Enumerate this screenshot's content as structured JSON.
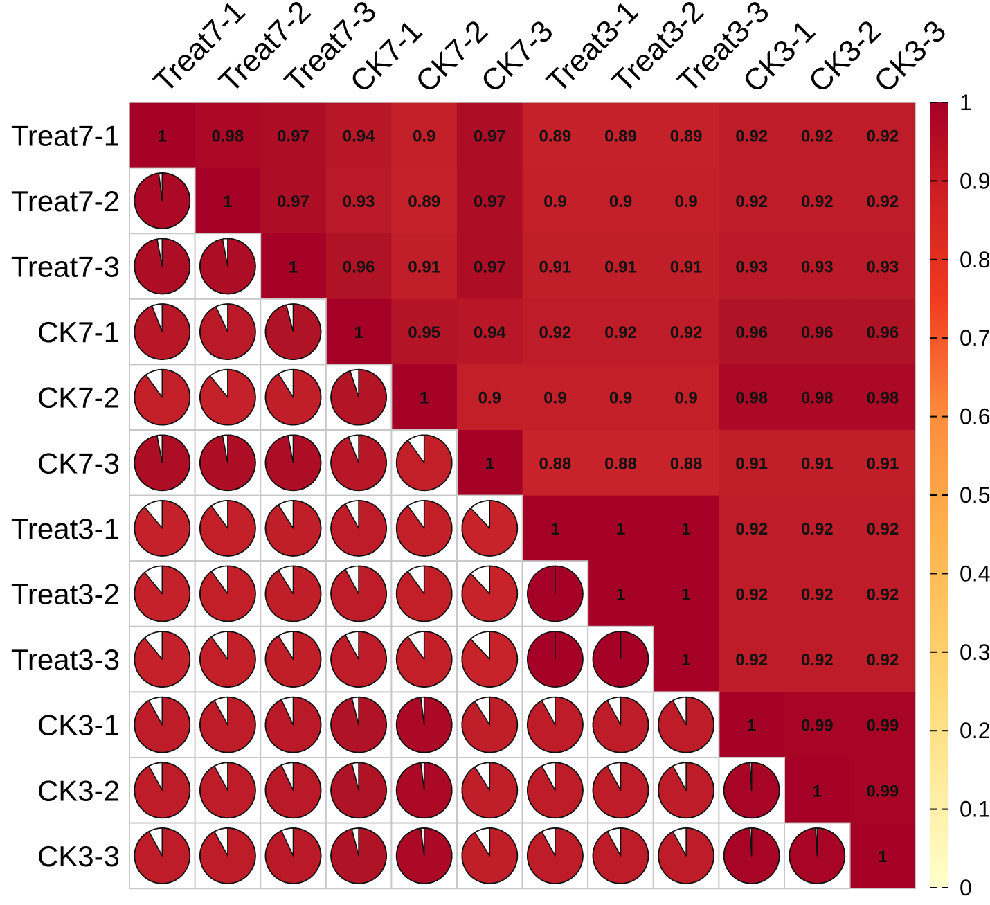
{
  "chart_data": {
    "type": "heatmap",
    "title": "",
    "variables": [
      "Treat7-1",
      "Treat7-2",
      "Treat7-3",
      "CK7-1",
      "CK7-2",
      "CK7-3",
      "Treat3-1",
      "Treat3-2",
      "Treat3-3",
      "CK3-1",
      "CK3-2",
      "CK3-3"
    ],
    "matrix": [
      [
        1,
        0.98,
        0.97,
        0.94,
        0.9,
        0.97,
        0.89,
        0.89,
        0.89,
        0.92,
        0.92,
        0.92
      ],
      [
        0.98,
        1,
        0.97,
        0.93,
        0.89,
        0.97,
        0.9,
        0.9,
        0.9,
        0.92,
        0.92,
        0.92
      ],
      [
        0.97,
        0.97,
        1,
        0.96,
        0.91,
        0.97,
        0.91,
        0.91,
        0.91,
        0.93,
        0.93,
        0.93
      ],
      [
        0.94,
        0.93,
        0.96,
        1,
        0.95,
        0.94,
        0.92,
        0.92,
        0.92,
        0.96,
        0.96,
        0.96
      ],
      [
        0.9,
        0.89,
        0.91,
        0.95,
        1,
        0.9,
        0.9,
        0.9,
        0.9,
        0.98,
        0.98,
        0.98
      ],
      [
        0.97,
        0.97,
        0.97,
        0.94,
        0.9,
        1,
        0.88,
        0.88,
        0.88,
        0.91,
        0.91,
        0.91
      ],
      [
        0.89,
        0.9,
        0.91,
        0.92,
        0.9,
        0.88,
        1,
        1,
        1,
        0.92,
        0.92,
        0.92
      ],
      [
        0.89,
        0.9,
        0.91,
        0.92,
        0.9,
        0.88,
        1,
        1,
        1,
        0.92,
        0.92,
        0.92
      ],
      [
        0.89,
        0.9,
        0.91,
        0.92,
        0.9,
        0.88,
        1,
        1,
        1,
        0.92,
        0.92,
        0.92
      ],
      [
        0.92,
        0.92,
        0.93,
        0.96,
        0.98,
        0.91,
        0.92,
        0.92,
        0.92,
        1,
        0.99,
        0.99
      ],
      [
        0.92,
        0.92,
        0.93,
        0.96,
        0.98,
        0.91,
        0.92,
        0.92,
        0.92,
        0.99,
        1,
        0.99
      ],
      [
        0.92,
        0.92,
        0.93,
        0.96,
        0.98,
        0.91,
        0.92,
        0.92,
        0.92,
        0.99,
        0.99,
        1
      ]
    ],
    "upper_triangle": "numbers",
    "lower_triangle": "pie",
    "colorbar": {
      "range": [
        0,
        1
      ],
      "ticks": [
        "0",
        "0.1",
        "0.2",
        "0.3",
        "0.4",
        "0.5",
        "0.6",
        "0.7",
        "0.8",
        "0.9",
        "1"
      ],
      "placement": "right",
      "colors": [
        "#ffffcc",
        "#ffeda0",
        "#fed976",
        "#feb24c",
        "#fd8d3c",
        "#fc4e2a",
        "#e31a1c",
        "#bd0026",
        "#a50026"
      ]
    },
    "grid": true
  }
}
